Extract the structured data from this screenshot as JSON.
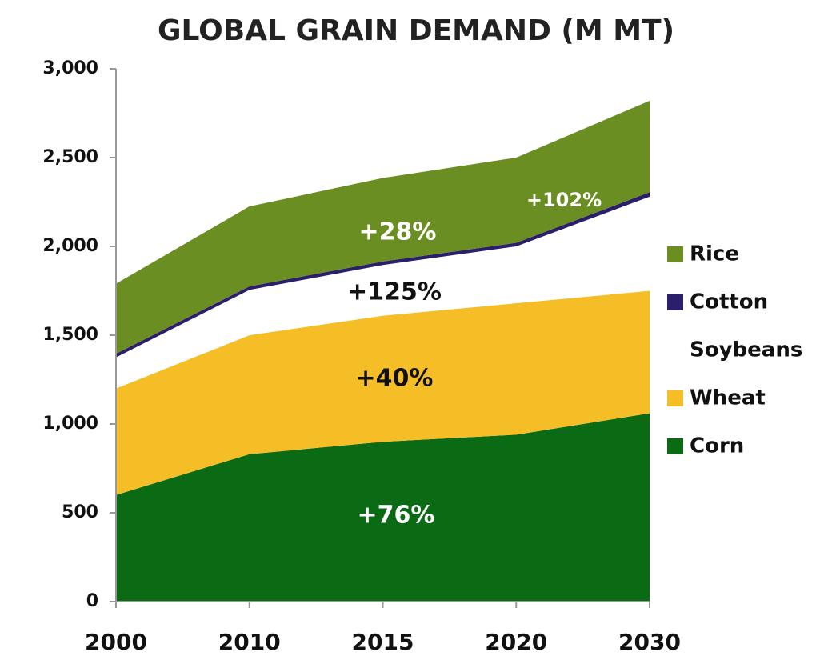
{
  "chart_data": {
    "type": "stacked-area",
    "title": "GLOBAL GRAIN DEMAND (M MT)",
    "categories": [
      "2000",
      "2010",
      "2015",
      "2020",
      "2030"
    ],
    "series": [
      {
        "name": "Corn",
        "color": "#0b6a14",
        "values": [
          600,
          830,
          900,
          940,
          1060
        ]
      },
      {
        "name": "Wheat",
        "color": "#f6be26",
        "values": [
          600,
          670,
          710,
          740,
          690
        ]
      },
      {
        "name": "Soybeans",
        "color": "#ffffff",
        "values": [
          175,
          255,
          285,
          320,
          530
        ]
      },
      {
        "name": "Cotton",
        "color": "#2b1f6b",
        "values": [
          20,
          20,
          20,
          20,
          25
        ]
      },
      {
        "name": "Rice",
        "color": "#6b8e23",
        "values": [
          395,
          450,
          470,
          480,
          515
        ]
      }
    ],
    "annotations": [
      "+76%",
      "+40%",
      "+125%",
      "+28%",
      "+102%"
    ],
    "ylim": [
      0,
      3000
    ],
    "yticks": [
      0,
      500,
      {
        "value": 1000,
        "label": "1,000"
      },
      {
        "value": 1500,
        "label": "1,500"
      },
      {
        "value": 2000,
        "label": "2,000"
      },
      {
        "value": 2500,
        "label": "2,500"
      },
      {
        "value": 3000,
        "label": "3,000"
      }
    ],
    "grid": false
  }
}
